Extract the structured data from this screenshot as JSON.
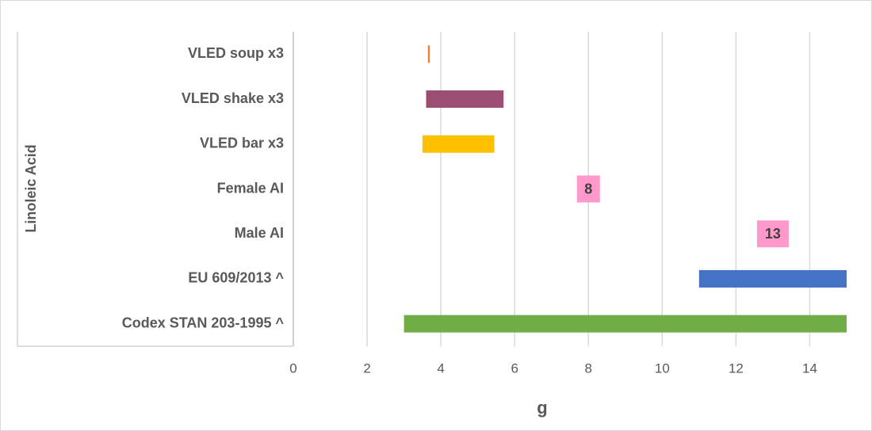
{
  "chart_data": {
    "type": "range-bar",
    "y_axis_label": "Linoleic Acid",
    "x_axis_label": "g",
    "categories": [
      "VLED soup x3",
      "VLED shake x3",
      "VLED bar x3",
      "Female AI",
      "Male AI",
      "EU 609/2013 ^",
      "Codex STAN 203-1995 ^"
    ],
    "starts": [
      3.65,
      3.6,
      3.5,
      null,
      null,
      11,
      3
    ],
    "ends": [
      3.7,
      5.7,
      5.45,
      null,
      null,
      15,
      15
    ],
    "values": [
      null,
      null,
      null,
      8,
      13,
      null,
      null
    ],
    "colors": [
      "#ed7d31",
      "#9b4d72",
      "#ffc000",
      "#ff99cc",
      "#ff99cc",
      "#4472c4",
      "#70ad47"
    ],
    "xlim": [
      0,
      15
    ],
    "xticks": [
      0,
      2,
      4,
      6,
      8,
      10,
      12,
      14
    ],
    "grid": true
  }
}
